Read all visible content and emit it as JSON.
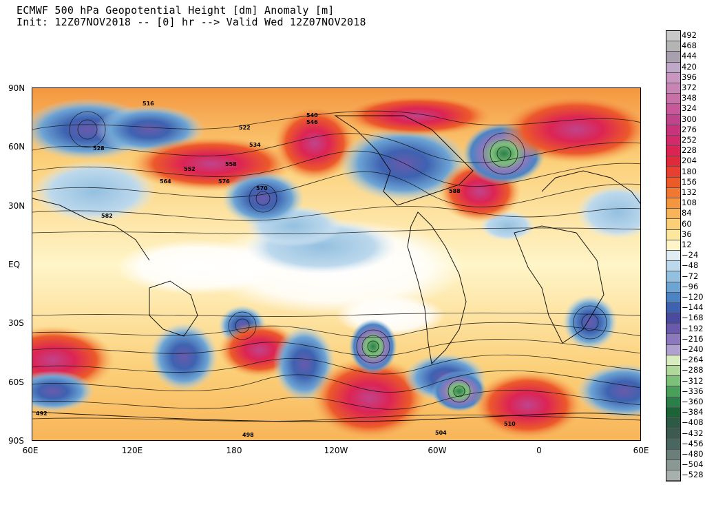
{
  "title": {
    "line1": "ECMWF 500 hPa Geopotential Height [dm] Anomaly [m]",
    "line2": "Init: 12Z07NOV2018 -- [0] hr --> Valid Wed 12Z07NOV2018"
  },
  "axes": {
    "lat_ticks": [
      "90N",
      "60N",
      "30N",
      "EQ",
      "30S",
      "60S",
      "90S"
    ],
    "lon_ticks": [
      "60E",
      "120E",
      "180",
      "120W",
      "60W",
      "0",
      "60E"
    ]
  },
  "colorbar": {
    "levels": [
      "492",
      "468",
      "444",
      "420",
      "396",
      "372",
      "348",
      "324",
      "300",
      "276",
      "252",
      "228",
      "204",
      "180",
      "156",
      "132",
      "108",
      "84",
      "60",
      "36",
      "12",
      "−24",
      "−48",
      "−72",
      "−96",
      "−120",
      "−144",
      "−168",
      "−192",
      "−216",
      "−240",
      "−264",
      "−288",
      "−312",
      "−336",
      "−360",
      "−384",
      "−408",
      "−432",
      "−456",
      "−480",
      "−504",
      "−528"
    ],
    "colors": [
      "#c8c8c8",
      "#b4b4b4",
      "#a8a0ac",
      "#bfa8c8",
      "#c896c0",
      "#c884b4",
      "#c870a8",
      "#c8589a",
      "#c0448c",
      "#c8347c",
      "#d22a6a",
      "#dc2454",
      "#e02a3c",
      "#e84030",
      "#ec5a2a",
      "#f07830",
      "#f49640",
      "#f8b458",
      "#fbcf78",
      "#fde79e",
      "#fff5c8",
      "#e0ecf4",
      "#bcd8ec",
      "#94c0e0",
      "#6ca4d4",
      "#4a84c4",
      "#3e62b0",
      "#4a4aa0",
      "#6a5aac",
      "#8c78bc",
      "#b0a0d0",
      "#d8ecc0",
      "#b0d89a",
      "#7cc07a",
      "#4aa05a",
      "#2a8048",
      "#1c6438",
      "#2c5a44",
      "#3c5a50",
      "#4a6660",
      "#6a7e7a",
      "#8a9894",
      "#a8b0ae"
    ]
  },
  "contour_labels": [
    "516",
    "522",
    "528",
    "534",
    "540",
    "546",
    "552",
    "558",
    "564",
    "570",
    "576",
    "582",
    "588",
    "492",
    "498",
    "504",
    "510"
  ]
}
